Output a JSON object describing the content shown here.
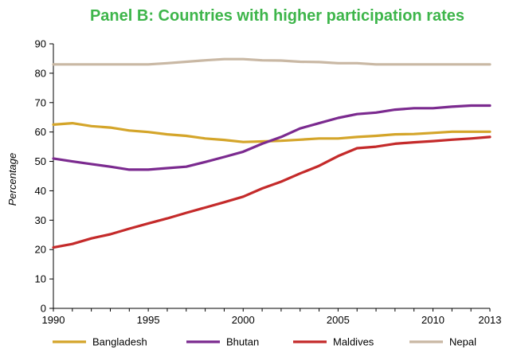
{
  "chart_data": {
    "type": "line",
    "title": "Panel B: Countries with higher participation rates",
    "ylabel": "Percentage",
    "xlabel": "",
    "xlim": [
      1990,
      2013
    ],
    "ylim": [
      0,
      90
    ],
    "x_ticks": [
      "1990",
      "1995",
      "2000",
      "2005",
      "2010",
      "2013"
    ],
    "y_ticks": [
      "0",
      "10",
      "20",
      "30",
      "40",
      "50",
      "60",
      "70",
      "80",
      "90"
    ],
    "grid": false,
    "legend_position": "bottom",
    "x": [
      1990,
      1991,
      1992,
      1993,
      1994,
      1995,
      1996,
      1997,
      1998,
      1999,
      2000,
      2001,
      2002,
      2003,
      2004,
      2005,
      2006,
      2007,
      2008,
      2009,
      2010,
      2011,
      2012,
      2013
    ],
    "series": [
      {
        "name": "Bangladesh",
        "color": "#d4a52a",
        "values": [
          62.5,
          63.0,
          62.0,
          61.5,
          60.5,
          60.0,
          59.2,
          58.7,
          57.8,
          57.3,
          56.6,
          56.8,
          57.0,
          57.4,
          57.8,
          57.8,
          58.3,
          58.7,
          59.2,
          59.3,
          59.7,
          60.1,
          60.1,
          60.1
        ]
      },
      {
        "name": "Bhutan",
        "color": "#7b2a8f",
        "values": [
          51.0,
          50.0,
          49.1,
          48.2,
          47.2,
          47.2,
          47.7,
          48.2,
          49.8,
          51.5,
          53.3,
          56.0,
          58.3,
          61.2,
          63.0,
          64.8,
          66.1,
          66.6,
          67.6,
          68.1,
          68.1,
          68.6,
          69.0,
          69.0
        ]
      },
      {
        "name": "Maldives",
        "color": "#c42a2a",
        "values": [
          20.7,
          21.9,
          23.8,
          25.2,
          27.1,
          28.9,
          30.6,
          32.5,
          34.3,
          36.1,
          38.0,
          40.8,
          43.1,
          45.9,
          48.5,
          51.8,
          54.5,
          55.0,
          56.0,
          56.5,
          56.9,
          57.4,
          57.8,
          58.3
        ]
      },
      {
        "name": "Nepal",
        "color": "#c9b8a4",
        "values": [
          83.0,
          83.0,
          83.0,
          83.0,
          83.0,
          83.0,
          83.4,
          83.9,
          84.4,
          84.8,
          84.8,
          84.4,
          84.3,
          83.9,
          83.8,
          83.4,
          83.4,
          83.0,
          83.0,
          83.0,
          83.0,
          83.0,
          83.0,
          83.0
        ]
      }
    ]
  }
}
